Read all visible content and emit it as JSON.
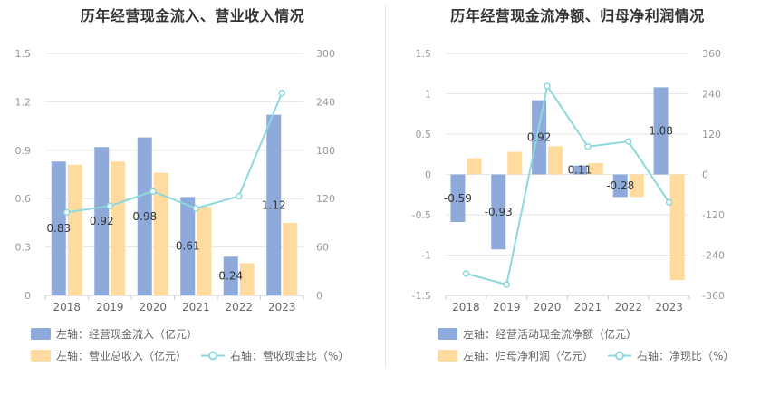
{
  "colors": {
    "bar_primary": "#8eaadb",
    "bar_secondary": "#ffdba0",
    "line": "#8ed8dd",
    "grid": "#e6e6e6",
    "axis_text": "#999999",
    "label_text": "#333333"
  },
  "chart_data": [
    {
      "type": "bar",
      "title": "历年经营现金流入、营业收入情况",
      "categories": [
        "2018",
        "2019",
        "2020",
        "2021",
        "2022",
        "2023"
      ],
      "y_left": {
        "ticks": [
          "0",
          "0.3",
          "0.6",
          "0.9",
          "1.2",
          "1.5"
        ],
        "lim": [
          0,
          1.5
        ]
      },
      "y_right": {
        "ticks": [
          "0",
          "60",
          "120",
          "180",
          "240",
          "300"
        ],
        "lim": [
          0,
          300
        ]
      },
      "series": [
        {
          "name": "左轴：经营现金流入（亿元）",
          "type": "bar",
          "axis": "left",
          "values": [
            0.83,
            0.92,
            0.98,
            0.61,
            0.24,
            1.12
          ],
          "labels": [
            "0.83",
            "0.92",
            "0.98",
            "0.61",
            "0.24",
            "1.12"
          ]
        },
        {
          "name": "左轴：营业总收入（亿元）",
          "type": "bar",
          "axis": "left",
          "values": [
            0.81,
            0.83,
            0.76,
            0.55,
            0.2,
            0.45
          ]
        },
        {
          "name": "右轴：营收现金比（%）",
          "type": "line",
          "axis": "right",
          "values": [
            103,
            111,
            129,
            108,
            123,
            251
          ]
        }
      ],
      "legend": [
        [
          "左轴：经营现金流入（亿元）"
        ],
        [
          "左轴：营业总收入（亿元）",
          "右轴：营收现金比（%）"
        ]
      ]
    },
    {
      "type": "bar",
      "title": "历年经营现金流净额、归母净利润情况",
      "categories": [
        "2018",
        "2019",
        "2020",
        "2021",
        "2022",
        "2023"
      ],
      "y_left": {
        "ticks": [
          "-1.5",
          "-1",
          "-0.5",
          "0",
          "0.5",
          "1",
          "1.5"
        ],
        "lim": [
          -1.5,
          1.5
        ]
      },
      "y_right": {
        "ticks": [
          "-360",
          "-240",
          "-120",
          "0",
          "120",
          "240",
          "360"
        ],
        "lim": [
          -360,
          360
        ]
      },
      "series": [
        {
          "name": "左轴：经营活动现金流净额（亿元）",
          "type": "bar",
          "axis": "left",
          "values": [
            -0.59,
            -0.93,
            0.92,
            0.11,
            -0.28,
            1.08
          ],
          "labels": [
            "-0.59",
            "-0.93",
            "0.92",
            "0.11",
            "-0.28",
            "1.08"
          ]
        },
        {
          "name": "左轴：归母净利润（亿元）",
          "type": "bar",
          "axis": "left",
          "values": [
            0.2,
            0.28,
            0.35,
            0.14,
            -0.28,
            -1.31
          ]
        },
        {
          "name": "右轴：净现比（%）",
          "type": "line",
          "axis": "right",
          "values": [
            -295,
            -328,
            263,
            83,
            98,
            -83
          ]
        }
      ],
      "legend": [
        [
          "左轴：经营活动现金流净额（亿元）"
        ],
        [
          "左轴：归母净利润（亿元）",
          "右轴：净现比（%）"
        ]
      ]
    }
  ]
}
